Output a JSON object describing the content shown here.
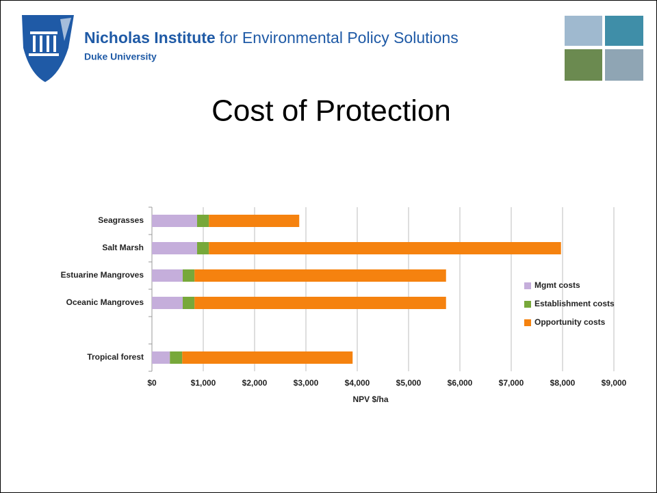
{
  "header": {
    "institute": "Nicholas Institute",
    "institute_rest": "for Environmental Policy Solutions",
    "university": "Duke University"
  },
  "chart_data": {
    "type": "stacked-bar-horizontal",
    "title": "Cost of Protection",
    "categories": [
      "Seagrasses",
      "Salt Marsh",
      "Estuarine Mangroves",
      "Oceanic Mangroves",
      null,
      "Tropical forest"
    ],
    "series": [
      {
        "name": "Mgmt costs",
        "color": "#c5aedb",
        "values": [
          880,
          880,
          600,
          600,
          null,
          350
        ]
      },
      {
        "name": "Establishment costs",
        "color": "#77a83a",
        "values": [
          230,
          230,
          230,
          230,
          null,
          240
        ]
      },
      {
        "name": "Opportunity costs",
        "color": "#f5820f",
        "values": [
          1760,
          6860,
          4900,
          4900,
          null,
          3320
        ]
      }
    ],
    "x_label": "NPV $/ha",
    "xlim": [
      0,
      9000
    ],
    "xticks": [
      {
        "value": 0,
        "label": "$0"
      },
      {
        "value": 1000,
        "label": "$1,000"
      },
      {
        "value": 2000,
        "label": "$2,000"
      },
      {
        "value": 3000,
        "label": "$3,000"
      },
      {
        "value": 4000,
        "label": "$4,000"
      },
      {
        "value": 5000,
        "label": "$5,000"
      },
      {
        "value": 6000,
        "label": "$6,000"
      },
      {
        "value": 7000,
        "label": "$7,000"
      },
      {
        "value": 8000,
        "label": "$8,000"
      },
      {
        "value": 9000,
        "label": "$9,000"
      }
    ],
    "grid": true,
    "legend": "right"
  }
}
